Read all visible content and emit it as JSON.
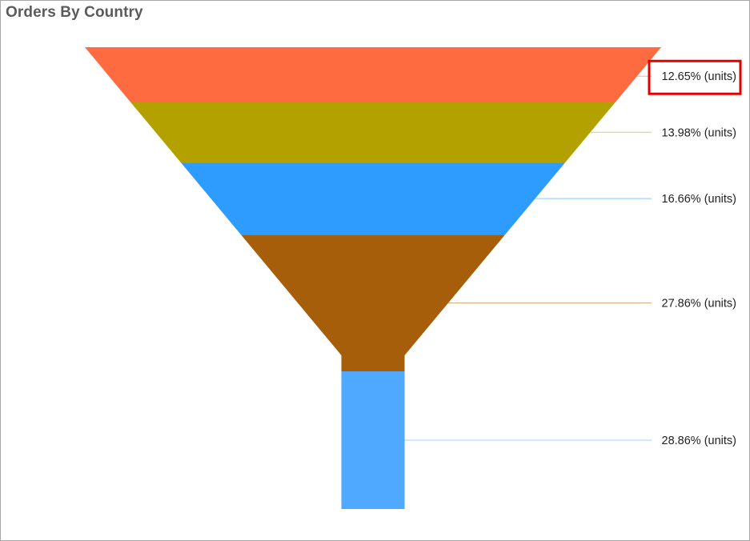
{
  "chart_data": {
    "type": "funnel",
    "title": "Orders By Country",
    "values": [
      12.65,
      13.98,
      16.66,
      27.86,
      28.86
    ],
    "labels": [
      "12.65% (units)",
      "13.98% (units)",
      "16.66% (units)",
      "27.86% (units)",
      "28.86% (units)"
    ],
    "colors": [
      "#ff6b40",
      "#b3a100",
      "#2e9bff",
      "#a65e0a",
      "#4ea9ff"
    ],
    "highlighted_label_index": 0,
    "highlight_color": "#e00000"
  }
}
